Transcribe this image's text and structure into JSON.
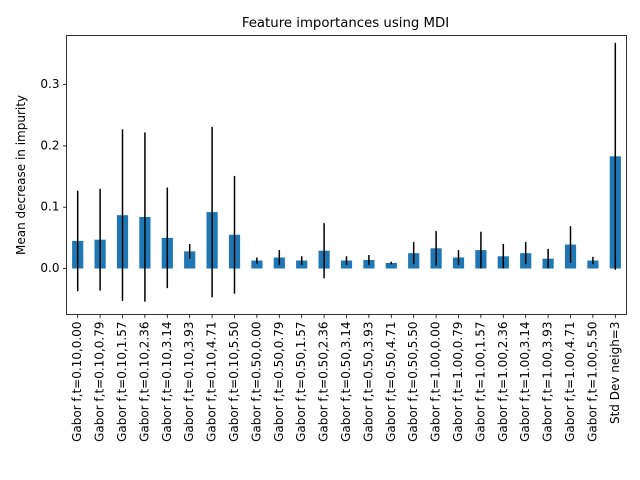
{
  "chart_data": {
    "type": "bar",
    "title": "Feature importances using MDI",
    "xlabel": "",
    "ylabel": "Mean decrease in impurity",
    "ylim": [
      -0.075,
      0.38
    ],
    "yticks": [
      0.0,
      0.1,
      0.2,
      0.3
    ],
    "ytick_labels": [
      "0.0",
      "0.1",
      "0.2",
      "0.3"
    ],
    "grid": false,
    "bar_color": "#1f77b4",
    "errorbar_color": "#000000",
    "categories": [
      "Gabor f,t=0.10,0.00",
      "Gabor f,t=0.10,0.79",
      "Gabor f,t=0.10,1.57",
      "Gabor f,t=0.10,2.36",
      "Gabor f,t=0.10,3.14",
      "Gabor f,t=0.10,3.93",
      "Gabor f,t=0.10,4.71",
      "Gabor f,t=0.10,5.50",
      "Gabor f,t=0.50,0.00",
      "Gabor f,t=0.50,0.79",
      "Gabor f,t=0.50,1.57",
      "Gabor f,t=0.50,2.36",
      "Gabor f,t=0.50,3.14",
      "Gabor f,t=0.50,3.93",
      "Gabor f,t=0.50,4.71",
      "Gabor f,t=0.50,5.50",
      "Gabor f,t=1.00,0.00",
      "Gabor f,t=1.00,0.79",
      "Gabor f,t=1.00,1.57",
      "Gabor f,t=1.00,2.36",
      "Gabor f,t=1.00,3.14",
      "Gabor f,t=1.00,3.93",
      "Gabor f,t=1.00,4.71",
      "Gabor f,t=1.00,5.50",
      "Std Dev neigh=3"
    ],
    "values": [
      0.045,
      0.047,
      0.087,
      0.084,
      0.05,
      0.028,
      0.092,
      0.055,
      0.013,
      0.018,
      0.013,
      0.029,
      0.013,
      0.014,
      0.009,
      0.025,
      0.033,
      0.018,
      0.03,
      0.02,
      0.025,
      0.016,
      0.039,
      0.013,
      0.183
    ],
    "errors": [
      0.082,
      0.083,
      0.14,
      0.138,
      0.082,
      0.012,
      0.139,
      0.096,
      0.005,
      0.012,
      0.007,
      0.045,
      0.007,
      0.008,
      0.002,
      0.018,
      0.028,
      0.012,
      0.03,
      0.02,
      0.018,
      0.016,
      0.03,
      0.006,
      0.185
    ]
  }
}
